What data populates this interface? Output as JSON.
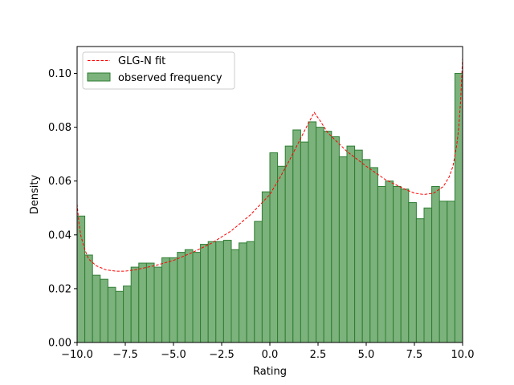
{
  "chart_data": {
    "type": "bar",
    "title": "",
    "xlabel": "Rating",
    "ylabel": "Density",
    "xlim": [
      -10,
      10
    ],
    "ylim": [
      0,
      0.11
    ],
    "x_ticks": [
      "−10.0",
      "−7.5",
      "−5.0",
      "−2.5",
      "0.0",
      "2.5",
      "5.0",
      "7.5",
      "10.0"
    ],
    "y_ticks": [
      "0.00",
      "0.02",
      "0.04",
      "0.06",
      "0.08",
      "0.10"
    ],
    "legend_position": "top-left",
    "grid": false,
    "colors": {
      "bar_fill": "#7cb27c",
      "bar_edge": "#2e7d32",
      "fit_line": "#ff0000"
    },
    "series": [
      {
        "name": "observed frequency",
        "kind": "histogram",
        "bin_start": -10,
        "bin_width": 0.4,
        "values": [
          0.047,
          0.0325,
          0.025,
          0.0235,
          0.0205,
          0.019,
          0.021,
          0.028,
          0.0295,
          0.0295,
          0.028,
          0.0315,
          0.0315,
          0.0335,
          0.0345,
          0.0335,
          0.0365,
          0.0375,
          0.0375,
          0.038,
          0.0345,
          0.037,
          0.0375,
          0.045,
          0.056,
          0.0705,
          0.0655,
          0.073,
          0.079,
          0.0745,
          0.082,
          0.08,
          0.0785,
          0.0765,
          0.069,
          0.073,
          0.0715,
          0.068,
          0.065,
          0.058,
          0.06,
          0.058,
          0.057,
          0.052,
          0.046,
          0.05,
          0.058,
          0.0525,
          0.0525,
          0.1
        ]
      },
      {
        "name": "GLG-N fit",
        "kind": "line",
        "style": "dashed",
        "x": [
          -10.0,
          -9.9,
          -9.8,
          -9.6,
          -9.4,
          -9.0,
          -8.5,
          -8.0,
          -7.5,
          -7.0,
          -6.0,
          -5.0,
          -4.0,
          -3.0,
          -2.0,
          -1.0,
          0.0,
          0.5,
          1.0,
          1.5,
          2.0,
          2.3,
          2.6,
          3.0,
          3.5,
          4.0,
          5.0,
          6.0,
          7.0,
          7.5,
          8.0,
          8.5,
          9.0,
          9.3,
          9.5,
          9.7,
          9.8,
          9.9,
          10.0
        ],
        "y": [
          0.0515,
          0.044,
          0.0395,
          0.0345,
          0.031,
          0.0285,
          0.027,
          0.0265,
          0.0265,
          0.027,
          0.0285,
          0.0305,
          0.0335,
          0.037,
          0.0415,
          0.0475,
          0.055,
          0.061,
          0.0675,
          0.0745,
          0.0815,
          0.0855,
          0.0825,
          0.078,
          0.0745,
          0.071,
          0.0655,
          0.0605,
          0.057,
          0.0555,
          0.055,
          0.0555,
          0.058,
          0.0615,
          0.0655,
          0.0735,
          0.08,
          0.09,
          0.106
        ]
      }
    ]
  }
}
